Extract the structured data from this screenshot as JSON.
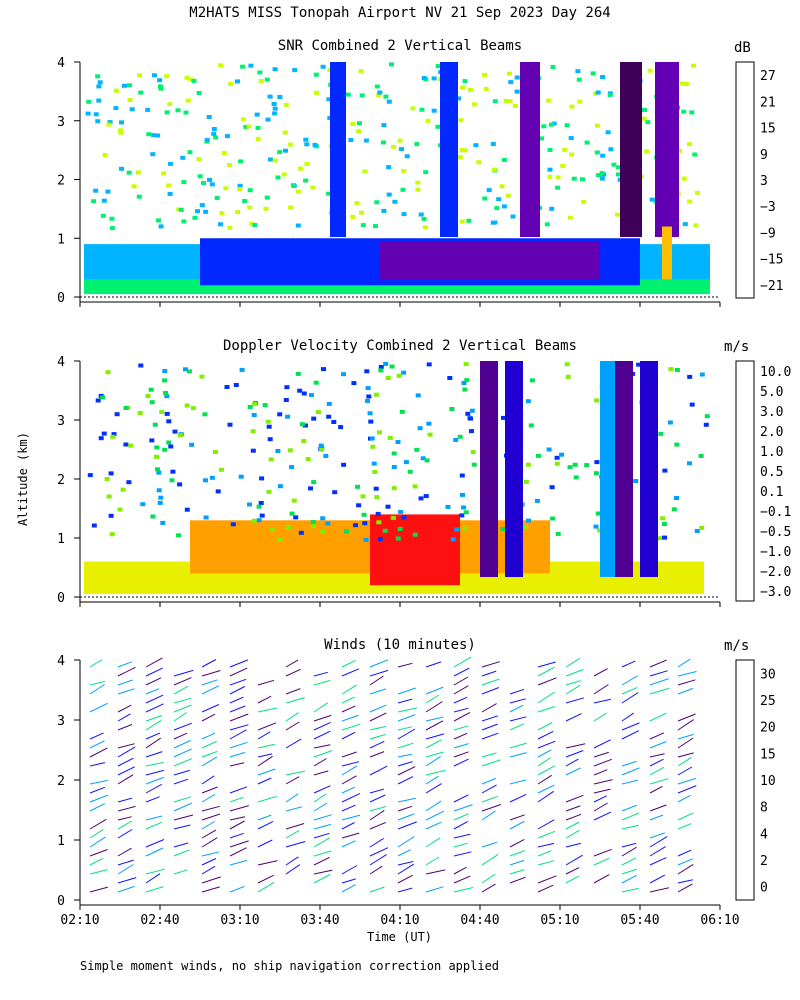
{
  "title": "M2HATS MISS Tonopah Airport NV  21 Sep 2023 Day 264",
  "footnote": "Simple moment winds, no ship navigation correction applied",
  "y_axis_label": "Altitude (km)",
  "x_axis_label": "Time (UT)",
  "chart_data": [
    {
      "type": "heatmap",
      "title": "SNR Combined 2 Vertical Beams",
      "colorbar_unit": "dB",
      "colorbar_labels": [
        "27",
        "21",
        "15",
        "9",
        "3",
        "−3",
        "−9",
        "−15",
        "−21"
      ],
      "colorbar_colors": [
        "#ffbe00",
        "#ff8000",
        "#ff2000",
        "#40005a",
        "#6400b4",
        "#0028ff",
        "#00b4ff",
        "#00f070",
        "#c8ff00"
      ],
      "x_ticks": [
        "02:10",
        "02:40",
        "03:10",
        "03:40",
        "04:10",
        "04:40",
        "05:10",
        "05:40",
        "06:10"
      ],
      "y_ticks": [
        "0",
        "1",
        "2",
        "3",
        "4"
      ],
      "xlim": [
        "02:10",
        "06:10"
      ],
      "ylim": [
        0,
        4
      ]
    },
    {
      "type": "heatmap",
      "title": "Doppler Velocity Combined 2 Vertical Beams",
      "colorbar_unit": "m/s",
      "colorbar_labels": [
        "10.0",
        "5.0",
        "3.0",
        "2.0",
        "1.0",
        "0.5",
        "0.1",
        "−0.1",
        "−0.5",
        "−1.0",
        "−2.0",
        "−3.0"
      ],
      "colorbar_colors": [
        "#300028",
        "#500090",
        "#2000d0",
        "#0030ff",
        "#00a0ff",
        "#00e050",
        "#80f000",
        "#e8f000",
        "#ffd000",
        "#ffa000",
        "#ff6000",
        "#ff1010"
      ],
      "x_ticks": [
        "02:10",
        "02:40",
        "03:10",
        "03:40",
        "04:10",
        "04:40",
        "05:10",
        "05:40",
        "06:10"
      ],
      "y_ticks": [
        "0",
        "1",
        "2",
        "3",
        "4"
      ],
      "xlim": [
        "02:10",
        "06:10"
      ],
      "ylim": [
        0,
        4
      ]
    },
    {
      "type": "scatter",
      "title": "Winds (10 minutes)",
      "colorbar_unit": "m/s",
      "colorbar_labels": [
        "30",
        "25",
        "20",
        "15",
        "10",
        "8",
        "4",
        "2",
        "0"
      ],
      "colorbar_colors": [
        "#ff1000",
        "#ff7000",
        "#ffb000",
        "#80e000",
        "#00e080",
        "#00a0ff",
        "#1010ff",
        "#500070",
        "#000000"
      ],
      "x_ticks": [
        "02:10",
        "02:40",
        "03:10",
        "03:40",
        "04:10",
        "04:40",
        "05:10",
        "05:40",
        "06:10"
      ],
      "y_ticks": [
        "0",
        "1",
        "2",
        "3",
        "4"
      ],
      "xlim": [
        "02:10",
        "06:10"
      ],
      "ylim": [
        0,
        4
      ]
    }
  ]
}
